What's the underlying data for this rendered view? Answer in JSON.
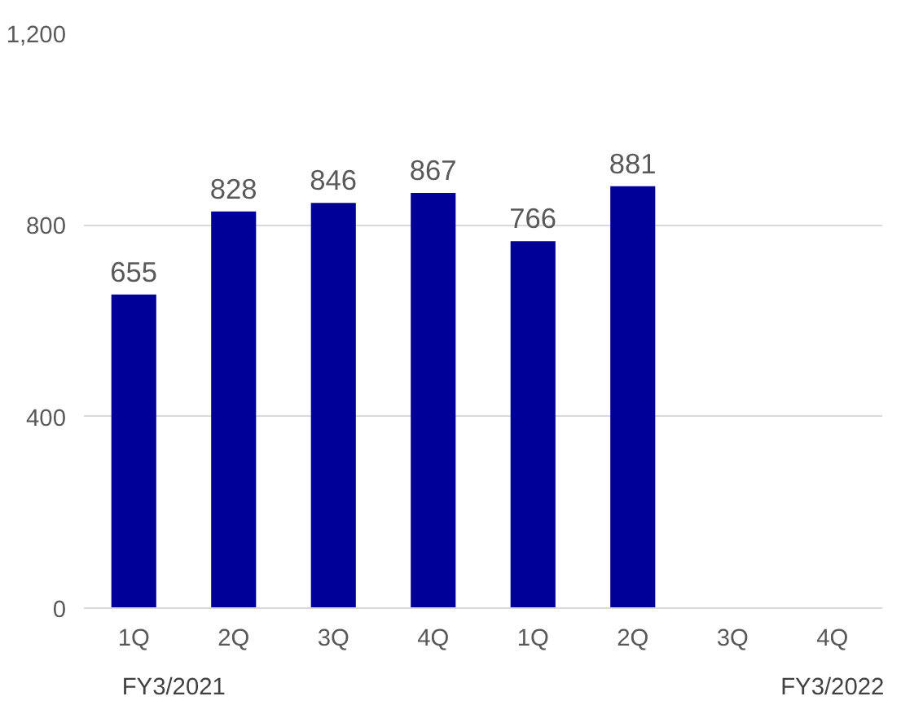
{
  "chart_data": {
    "type": "bar",
    "categories": [
      "1Q",
      "2Q",
      "3Q",
      "4Q",
      "1Q",
      "2Q",
      "3Q",
      "4Q"
    ],
    "values": [
      655,
      828,
      846,
      867,
      766,
      881,
      null,
      null
    ],
    "color": "#000099",
    "ylim": [
      0,
      1200
    ],
    "yticks": [
      0,
      {
        "value": 400,
        "label": "400"
      },
      {
        "value": 800,
        "label": "800"
      },
      {
        "value": 1200,
        "label": "1,200"
      }
    ],
    "grid": "y",
    "data_labels": true,
    "annotations": [
      "FY3/2021",
      "FY3/2022"
    ]
  }
}
